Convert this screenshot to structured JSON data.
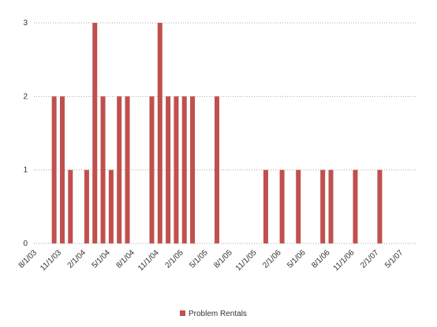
{
  "chart_data": {
    "type": "bar",
    "title": "",
    "xlabel": "",
    "ylabel": "",
    "ylim": [
      0,
      3
    ],
    "yticks": [
      "0",
      "1",
      "2",
      "3"
    ],
    "grid": "horizontal-dotted",
    "legend_position": "bottom",
    "x_tick_labels": [
      "8/1/03",
      "11/1/03",
      "2/1/04",
      "5/1/04",
      "8/1/04",
      "11/1/04",
      "2/1/05",
      "5/1/05",
      "8/1/05",
      "11/1/05",
      "2/1/06",
      "5/1/06",
      "8/1/06",
      "11/1/06",
      "2/1/07",
      "5/1/07"
    ],
    "x_range": [
      "2003-08-01",
      "2007-07-01"
    ],
    "series": [
      {
        "name": "Problem Rentals",
        "color": "#c0504d",
        "x": [
          "2003-10-01",
          "2003-11-01",
          "2003-12-01",
          "2004-02-01",
          "2004-03-01",
          "2004-04-01",
          "2004-05-01",
          "2004-06-01",
          "2004-07-01",
          "2004-10-01",
          "2004-11-01",
          "2004-12-01",
          "2005-01-01",
          "2005-02-01",
          "2005-03-01",
          "2005-06-01",
          "2005-12-01",
          "2006-02-01",
          "2006-04-01",
          "2006-07-01",
          "2006-08-01",
          "2006-11-01",
          "2007-02-01"
        ],
        "values": [
          2,
          2,
          1,
          1,
          3,
          2,
          1,
          2,
          2,
          2,
          3,
          2,
          2,
          2,
          2,
          2,
          1,
          1,
          1,
          1,
          1,
          1,
          1
        ]
      }
    ]
  }
}
